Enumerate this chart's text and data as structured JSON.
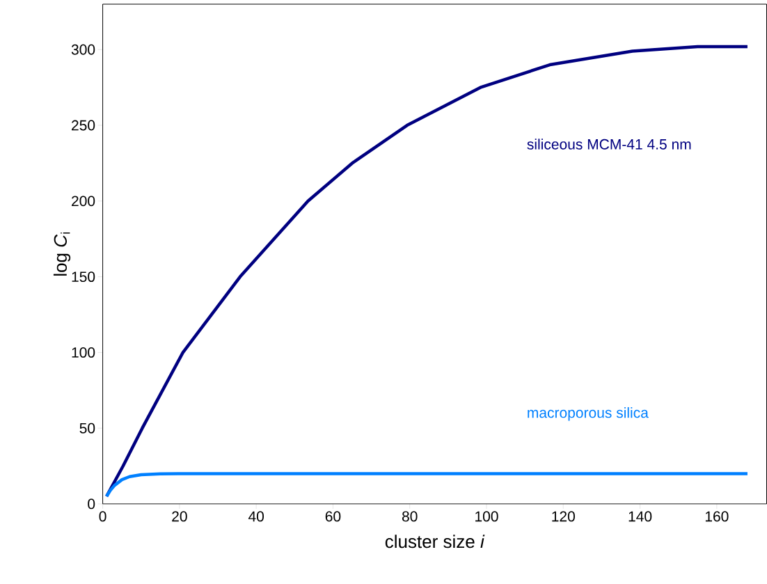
{
  "chart_data": {
    "type": "line",
    "xlabel": "cluster size  *i*",
    "ylabel": "log *C*$_{i}$",
    "xlim": [
      0,
      173
    ],
    "ylim": [
      0,
      330
    ],
    "xticks": [
      0,
      20,
      40,
      60,
      80,
      100,
      120,
      140,
      160
    ],
    "yticks": [
      0,
      50,
      100,
      150,
      200,
      250,
      300
    ],
    "grid": false,
    "legend": false,
    "marker": "none",
    "line_style": "solid",
    "series": [
      {
        "name": "siliceous MCM-41  4.5 nm",
        "color": "#000080",
        "x": [
          1,
          5.3,
          10.3,
          20.9,
          35.8,
          53.5,
          65,
          79.3,
          98.4,
          116.5,
          138,
          155,
          168
        ],
        "values": [
          5,
          25,
          50,
          100,
          150,
          200,
          225,
          250,
          275,
          290,
          299,
          302,
          302
        ]
      },
      {
        "name": "macroporous silica",
        "color": "#0080ff",
        "x": [
          1,
          2,
          3,
          5,
          7,
          10,
          15,
          20,
          168
        ],
        "values": [
          5,
          9,
          12,
          16,
          18,
          19.3,
          19.8,
          20,
          20
        ]
      }
    ]
  }
}
